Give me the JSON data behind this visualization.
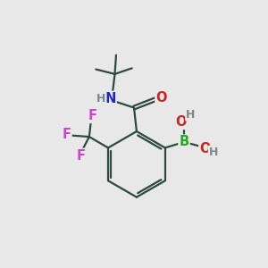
{
  "background_color": "#e8e8e8",
  "fig_size": [
    3.0,
    3.0
  ],
  "dpi": 100,
  "atom_colors": {
    "C": "#2d4a3e",
    "H": "#7a8a85",
    "N": "#2222cc",
    "O": "#cc2222",
    "F": "#cc44cc",
    "B": "#22aa22"
  },
  "bond_color": "#2d4a3e",
  "bond_width": 1.6,
  "font_size_atoms": 10.5,
  "font_size_H": 9.0
}
